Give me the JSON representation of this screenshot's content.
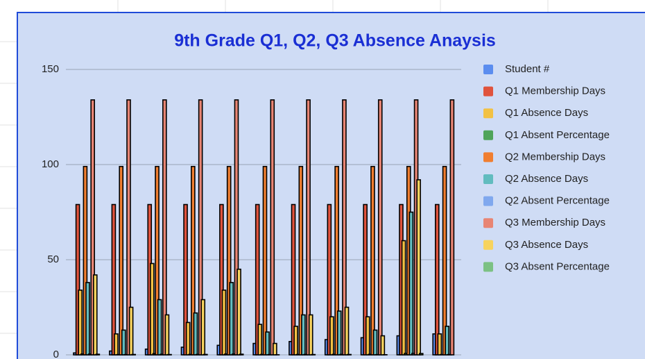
{
  "chart_data": {
    "type": "bar",
    "title": "9th Grade Q1, Q2, Q3 Absence Anaysis",
    "categories": [
      null,
      null,
      null,
      null,
      null,
      null,
      null,
      null,
      null,
      null,
      null
    ],
    "ylim": [
      0,
      150
    ],
    "yticks": [
      0,
      50,
      100,
      150
    ],
    "grid": true,
    "legend": "right",
    "series": [
      {
        "name": "Student #",
        "color": "#5b8def",
        "values": [
          1,
          2,
          3,
          4,
          5,
          6,
          7,
          8,
          9,
          10,
          11
        ]
      },
      {
        "name": "Q1 Membership Days",
        "color": "#e0533d",
        "values": [
          79,
          79,
          79,
          79,
          79,
          79,
          79,
          79,
          79,
          79,
          79
        ]
      },
      {
        "name": "Q1 Absence Days",
        "color": "#f2c144",
        "values": [
          34,
          11,
          48,
          17,
          34,
          16,
          15,
          20,
          20,
          60,
          11
        ]
      },
      {
        "name": "Q1 Absent Percentage",
        "color": "#4fa45a",
        "values": [
          0.43,
          0.14,
          0.61,
          0.22,
          0.43,
          0.2,
          0.19,
          0.25,
          0.25,
          0.76,
          0.14
        ]
      },
      {
        "name": "Q2 Membership Days",
        "color": "#f07e30",
        "values": [
          99,
          99,
          99,
          99,
          99,
          99,
          99,
          99,
          99,
          99,
          99
        ]
      },
      {
        "name": "Q2 Absence Days",
        "color": "#62bcbf",
        "values": [
          38,
          13,
          29,
          22,
          38,
          12,
          21,
          23,
          13,
          75,
          15
        ]
      },
      {
        "name": "Q2 Absent Percentage",
        "color": "#80a8ee",
        "values": [
          0.38,
          0.13,
          0.29,
          0.22,
          0.38,
          0.12,
          0.21,
          0.23,
          0.13,
          0.76,
          0.15
        ]
      },
      {
        "name": "Q3 Membership Days",
        "color": "#e88574",
        "values": [
          134,
          134,
          134,
          134,
          134,
          134,
          134,
          134,
          134,
          134,
          134
        ]
      },
      {
        "name": "Q3 Absence Days",
        "color": "#f7d35e",
        "values": [
          42,
          25,
          21,
          29,
          45,
          6,
          21,
          25,
          10,
          92,
          0
        ]
      },
      {
        "name": "Q3 Absent Percentage",
        "color": "#7cc184",
        "values": [
          0.31,
          0.19,
          0.16,
          0.22,
          0.34,
          0.04,
          0.16,
          0.19,
          0.07,
          0.69,
          0
        ]
      }
    ]
  }
}
